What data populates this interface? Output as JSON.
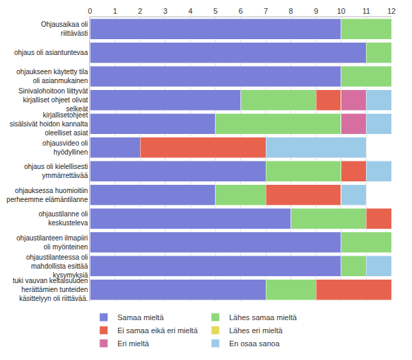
{
  "chart_data": {
    "type": "bar",
    "orientation": "horizontal",
    "stacked": true,
    "grid": true,
    "legend": "bottom",
    "categories": [
      "Ohjausaikaa oli riittävästi",
      "ohjaus oli asiantuntevaa",
      "ohjaukseen käytetty tila oli asianmukainen",
      "Sinivalohoitoon liittyvät kirjalliset ohjeet olivat selkeät",
      "kirjallisetohjeet sisälsivät hoidon kannalta oleelliset asiat",
      "ohjausvideo oli hyödyllinen",
      "ohjaus oli kielellisesti ymmärrettävää",
      "ohjauksessa huomioitiin perheemme elämäntilanne",
      "ohjaustilanne oli keskusteleva",
      "ohjaustilanteen ilmapiiri oli myönteinen",
      "ohjaustilanteessa oli mahdollista esittää kysymyksiä",
      "tuki vauvan keltaisuuden herättämien tunteiden käsittelyyn oli riittävää."
    ],
    "series": [
      {
        "name": "Samaa mieltä",
        "color": "#7a80d8",
        "values": [
          10,
          11,
          10,
          6,
          5,
          2,
          7,
          5,
          8,
          10,
          10,
          7
        ]
      },
      {
        "name": "Lähes samaa mieltä",
        "color": "#8fd879",
        "values": [
          2,
          1,
          2,
          3,
          5,
          0,
          3,
          2,
          3,
          2,
          1,
          2
        ]
      },
      {
        "name": "Ei samaa eikä eri mieltä",
        "color": "#e8634e",
        "values": [
          0,
          0,
          0,
          1,
          0,
          5,
          1,
          3,
          1,
          0,
          0,
          3
        ]
      },
      {
        "name": "Lähes eri mieltä",
        "color": "#e3da5a",
        "values": [
          0,
          0,
          0,
          0,
          0,
          0,
          0,
          0,
          0,
          0,
          0,
          0
        ]
      },
      {
        "name": "Eri mieltä",
        "color": "#d66fa0",
        "values": [
          0,
          0,
          0,
          1,
          1,
          0,
          0,
          0,
          0,
          0,
          0,
          0
        ]
      },
      {
        "name": "En osaa sanoa",
        "color": "#9ccbe8",
        "values": [
          0,
          0,
          0,
          1,
          1,
          4,
          1,
          1,
          0,
          0,
          1,
          0
        ]
      }
    ],
    "xlim": [
      0,
      12
    ],
    "xticks": [
      0,
      1,
      2,
      3,
      4,
      5,
      6,
      7,
      8,
      9,
      10,
      11,
      12
    ]
  }
}
